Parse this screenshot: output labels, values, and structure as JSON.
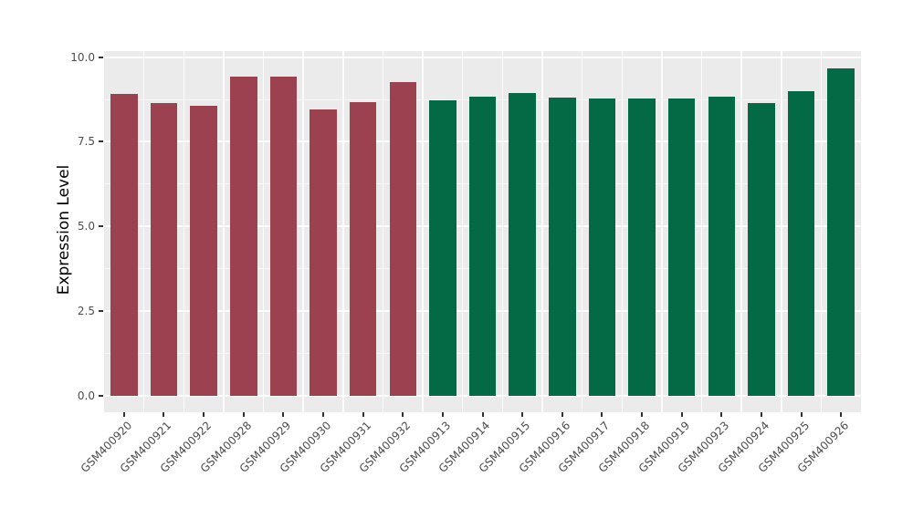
{
  "chart_data": {
    "type": "bar",
    "title": "",
    "xlabel": "",
    "ylabel": "Expression Level",
    "ylim": [
      0,
      10
    ],
    "yticks": [
      "0.0",
      "2.5",
      "5.0",
      "7.5",
      "10.0"
    ],
    "yticks_minor": [
      1.25,
      3.75,
      6.25,
      8.75
    ],
    "grid": "on",
    "legend": "none",
    "panel_bg": "#EBEBEB",
    "grid_color": "#FFFFFF",
    "tick_color": "#333333",
    "tick_label_color": "#4D4D4D",
    "categories": [
      "GSM400920",
      "GSM400921",
      "GSM400922",
      "GSM400928",
      "GSM400929",
      "GSM400930",
      "GSM400931",
      "GSM400932",
      "GSM400913",
      "GSM400914",
      "GSM400915",
      "GSM400916",
      "GSM400917",
      "GSM400918",
      "GSM400919",
      "GSM400923",
      "GSM400924",
      "GSM400925",
      "GSM400926"
    ],
    "values": [
      8.91,
      8.64,
      8.56,
      9.42,
      9.43,
      8.47,
      8.66,
      9.26,
      8.72,
      8.83,
      8.95,
      8.81,
      8.78,
      8.78,
      8.78,
      8.83,
      8.65,
      8.99,
      9.67
    ],
    "bar_groups": [
      "group1",
      "group1",
      "group1",
      "group1",
      "group1",
      "group1",
      "group1",
      "group1",
      "group2",
      "group2",
      "group2",
      "group2",
      "group2",
      "group2",
      "group2",
      "group2",
      "group2",
      "group2",
      "group2"
    ],
    "group_colors": {
      "group1": "#9C4150",
      "group2": "#046945"
    }
  }
}
